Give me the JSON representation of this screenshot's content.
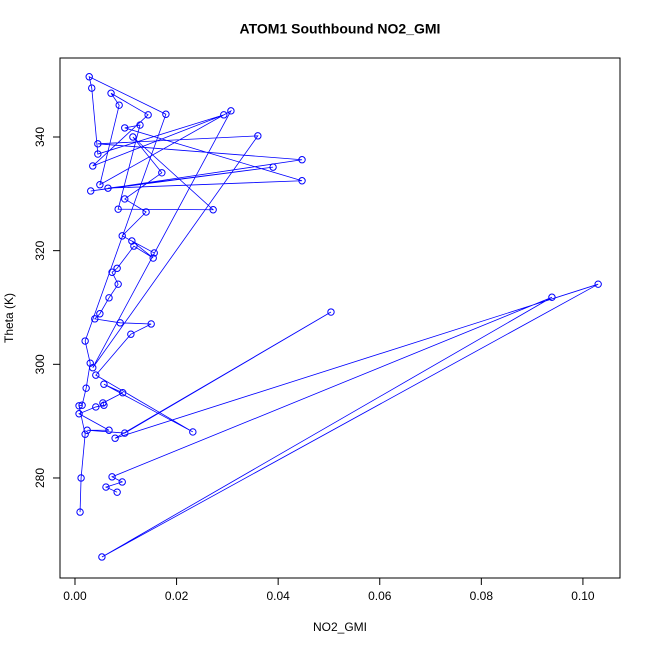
{
  "chart_data": {
    "type": "line",
    "title": "ATOM1 Southbound NO2_GMI",
    "x_label": "NO2_GMI",
    "y_label": "Theta (K)",
    "color": "#0000ff",
    "marker": "circle",
    "xlim": [
      -0.00295,
      0.1073
    ],
    "ylim": [
      262.4,
      353.9
    ],
    "xticks": [
      {
        "value": 0,
        "label": "0.00"
      },
      {
        "value": 0.02,
        "label": "0.02"
      },
      {
        "value": 0.04,
        "label": "0.04"
      },
      {
        "value": 0.06,
        "label": "0.06"
      },
      {
        "value": 0.08,
        "label": "0.08"
      },
      {
        "value": 0.1,
        "label": "0.10"
      }
    ],
    "yticks": [
      280,
      300,
      320,
      340
    ],
    "x": [
      0.001,
      0.0012,
      0.002,
      0.0008,
      0.0014,
      0.0022,
      0.003,
      0.002,
      0.0179,
      0.0028,
      0.0033,
      0.0045,
      0.0293,
      0.0035,
      0.0144,
      0.0071,
      0.0087,
      0.0049,
      0.0307,
      0.0035,
      0.036,
      0.0045,
      0.0447,
      0.0031,
      0.039,
      0.0065,
      0.0447,
      0.0098,
      0.0128,
      0.0085,
      0.0272,
      0.0114,
      0.0171,
      0.0098,
      0.014,
      0.0093,
      0.0156,
      0.0112,
      0.0154,
      0.0116,
      0.0083,
      0.0073,
      0.0085,
      0.0067,
      0.0049,
      0.0039,
      0.0089,
      0.015,
      0.011,
      0.0041,
      0.0232,
      0.0057,
      0.0094,
      0.0055,
      0.0057,
      0.0041,
      0.0008,
      0.0067,
      0.0024,
      0.0098,
      0.0504,
      0.0079,
      0.103,
      0.0053,
      0.0939,
      0.0073,
      0.0093,
      0.0061,
      0.0083
    ],
    "values": [
      274.0,
      280.0,
      287.7,
      292.7,
      292.8,
      295.8,
      300.2,
      304.1,
      344.0,
      350.6,
      348.6,
      337.0,
      343.9,
      334.9,
      343.9,
      347.7,
      345.6,
      331.6,
      344.6,
      299.4,
      340.2,
      338.8,
      336.0,
      330.5,
      334.7,
      331.0,
      332.3,
      341.6,
      342.1,
      327.3,
      327.2,
      340.0,
      333.7,
      329.1,
      326.8,
      322.6,
      319.6,
      321.7,
      318.7,
      320.8,
      316.9,
      316.2,
      314.1,
      311.7,
      308.9,
      308.0,
      307.3,
      307.1,
      305.3,
      298.1,
      288.1,
      296.5,
      295.0,
      293.2,
      292.8,
      292.5,
      291.3,
      288.4,
      288.4,
      287.9,
      309.2,
      287.0,
      314.1,
      266.1,
      311.8,
      280.2,
      279.3,
      278.4,
      277.5
    ]
  }
}
